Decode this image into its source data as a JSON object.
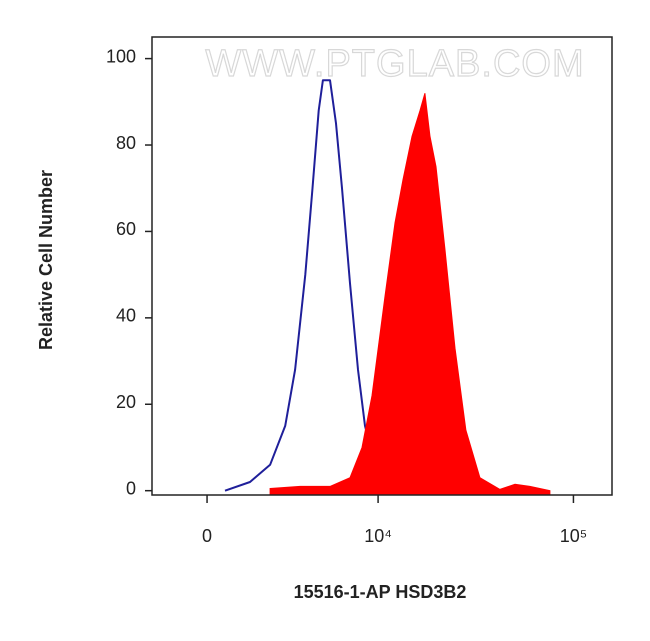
{
  "chart_data": {
    "type": "histogram-overlay",
    "watermark": "WWW.PTGLAB.COM",
    "x_label": "15516-1-AP HSD3B2",
    "y_label": "Relative Cell Number",
    "xscale": "asinh",
    "xscale_width": 2757,
    "xlim": [
      -1900,
      157000
    ],
    "xticks": [
      0,
      {
        "value": 10000,
        "label": "10⁴"
      },
      {
        "value": 100000,
        "label": "10⁵"
      }
    ],
    "ylim": [
      -1,
      105
    ],
    "yticks": [
      0,
      20,
      40,
      60,
      80,
      100
    ],
    "series": [
      {
        "color": "#1f1f9a",
        "fill": false,
        "x": [
          584,
          1445,
          2222,
          2886,
          3368,
          3909,
          4328,
          4712,
          4985,
          5476,
          5921,
          6394,
          7074,
          7816,
          8522,
          9628,
          11541,
          17510
        ],
        "values": [
          0,
          2,
          6,
          15,
          28,
          50,
          70,
          88,
          95,
          95,
          85,
          70,
          48,
          28,
          15,
          6,
          2,
          0
        ]
      },
      {
        "color": "#ff0000",
        "fill": true,
        "x": [
          2222,
          3623,
          5476,
          7074,
          8212,
          9283,
          10867,
          12255,
          13484,
          15010,
          16511,
          17510,
          18580,
          19960,
          22170,
          24950,
          28390,
          33440,
          42300,
          50450,
          60100,
          75900
        ],
        "values": [
          0.5,
          1,
          1,
          3,
          10,
          22,
          45,
          62,
          72,
          82,
          88,
          92,
          82,
          75,
          56,
          33,
          14,
          3,
          0.3,
          1.5,
          1,
          0
        ]
      }
    ]
  }
}
